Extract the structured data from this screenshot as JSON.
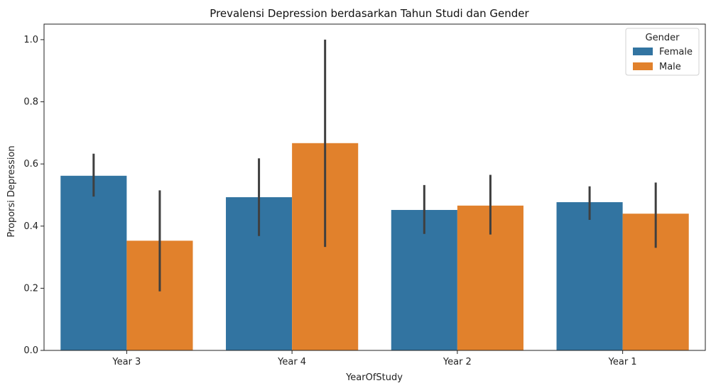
{
  "chart_data": {
    "type": "bar",
    "title": "Prevalensi Depression berdasarkan Tahun Studi dan Gender",
    "xlabel": "YearOfStudy",
    "ylabel": "Proporsi Depression",
    "categories": [
      "Year 3",
      "Year 4",
      "Year 2",
      "Year 1"
    ],
    "ylim": [
      0,
      1.05
    ],
    "yticks": [
      "0.0",
      "0.2",
      "0.4",
      "0.6",
      "0.8",
      "1.0"
    ],
    "grid": false,
    "legend": {
      "title": "Gender",
      "placement": "top-right"
    },
    "series": [
      {
        "name": "Female",
        "color": "#3274a1",
        "values": [
          0.562,
          0.493,
          0.452,
          0.477
        ],
        "ci_low": [
          0.495,
          0.368,
          0.375,
          0.42
        ],
        "ci_high": [
          0.633,
          0.618,
          0.532,
          0.528
        ]
      },
      {
        "name": "Male",
        "color": "#e1812c",
        "values": [
          0.353,
          0.667,
          0.466,
          0.44
        ],
        "ci_low": [
          0.19,
          0.333,
          0.373,
          0.33
        ],
        "ci_high": [
          0.515,
          1.0,
          0.565,
          0.54
        ]
      }
    ],
    "errorbar_color": "#3f3f3f"
  }
}
